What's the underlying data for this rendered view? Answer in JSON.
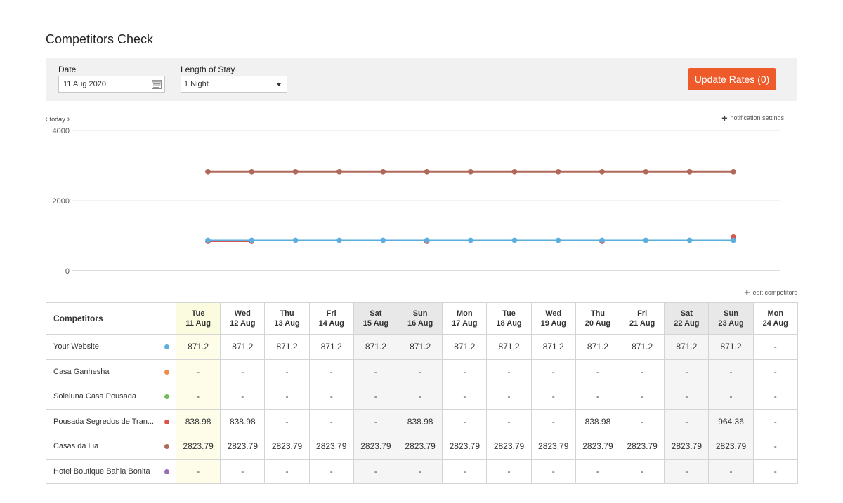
{
  "page": {
    "title": "Competitors Check"
  },
  "filters": {
    "date_label": "Date",
    "date_value": "11 Aug 2020",
    "los_label": "Length of Stay",
    "los_value": "1 Night",
    "update_button": "Update Rates (0)",
    "accent_color": "#ef5a2a"
  },
  "chart_nav": {
    "today_label": "today",
    "notification_label": "notification settings"
  },
  "chart_data": {
    "type": "line",
    "y_ticks": [
      "4000",
      "2000",
      "0"
    ],
    "ylim": [
      0,
      4000
    ],
    "x": [
      "11 Aug",
      "12 Aug",
      "13 Aug",
      "14 Aug",
      "15 Aug",
      "16 Aug",
      "17 Aug",
      "18 Aug",
      "19 Aug",
      "20 Aug",
      "21 Aug",
      "22 Aug",
      "23 Aug"
    ],
    "series": [
      {
        "name": "Casas da Lia",
        "color": "#b0685a",
        "values": [
          2823.79,
          2823.79,
          2823.79,
          2823.79,
          2823.79,
          2823.79,
          2823.79,
          2823.79,
          2823.79,
          2823.79,
          2823.79,
          2823.79,
          2823.79
        ]
      },
      {
        "name": "Pousada Segredos de Tran...",
        "color": "#d9534f",
        "values": [
          838.98,
          838.98,
          null,
          null,
          null,
          838.98,
          null,
          null,
          null,
          838.98,
          null,
          null,
          964.36
        ]
      },
      {
        "name": "Your Website",
        "color": "#5aaee0",
        "values": [
          871.2,
          871.2,
          871.2,
          871.2,
          871.2,
          871.2,
          871.2,
          871.2,
          871.2,
          871.2,
          871.2,
          871.2,
          871.2
        ]
      }
    ],
    "grid": true
  },
  "table": {
    "edit_label": "edit competitors",
    "header": "Competitors",
    "columns": [
      {
        "day": "Tue",
        "date": "11 Aug",
        "kind": "today"
      },
      {
        "day": "Wed",
        "date": "12 Aug",
        "kind": "plain"
      },
      {
        "day": "Thu",
        "date": "13 Aug",
        "kind": "plain"
      },
      {
        "day": "Fri",
        "date": "14 Aug",
        "kind": "plain"
      },
      {
        "day": "Sat",
        "date": "15 Aug",
        "kind": "weekend"
      },
      {
        "day": "Sun",
        "date": "16 Aug",
        "kind": "weekend"
      },
      {
        "day": "Mon",
        "date": "17 Aug",
        "kind": "plain"
      },
      {
        "day": "Tue",
        "date": "18 Aug",
        "kind": "plain"
      },
      {
        "day": "Wed",
        "date": "19 Aug",
        "kind": "plain"
      },
      {
        "day": "Thu",
        "date": "20 Aug",
        "kind": "plain"
      },
      {
        "day": "Fri",
        "date": "21 Aug",
        "kind": "plain"
      },
      {
        "day": "Sat",
        "date": "22 Aug",
        "kind": "weekend"
      },
      {
        "day": "Sun",
        "date": "23 Aug",
        "kind": "weekend"
      },
      {
        "day": "Mon",
        "date": "24 Aug",
        "kind": "plain"
      }
    ],
    "rows": [
      {
        "name": "Your Website",
        "color": "#5aaee0",
        "values": [
          "871.2",
          "871.2",
          "871.2",
          "871.2",
          "871.2",
          "871.2",
          "871.2",
          "871.2",
          "871.2",
          "871.2",
          "871.2",
          "871.2",
          "871.2",
          "-"
        ]
      },
      {
        "name": "Casa Ganhesha",
        "color": "#ef8c4a",
        "values": [
          "-",
          "-",
          "-",
          "-",
          "-",
          "-",
          "-",
          "-",
          "-",
          "-",
          "-",
          "-",
          "-",
          "-"
        ]
      },
      {
        "name": "Soleluna Casa Pousada",
        "color": "#6fbd58",
        "values": [
          "-",
          "-",
          "-",
          "-",
          "-",
          "-",
          "-",
          "-",
          "-",
          "-",
          "-",
          "-",
          "-",
          "-"
        ]
      },
      {
        "name": "Pousada Segredos de Tran...",
        "color": "#d9534f",
        "values": [
          "838.98",
          "838.98",
          "-",
          "-",
          "-",
          "838.98",
          "-",
          "-",
          "-",
          "838.98",
          "-",
          "-",
          "964.36",
          "-"
        ]
      },
      {
        "name": "Casas da Lia",
        "color": "#b0685a",
        "values": [
          "2823.79",
          "2823.79",
          "2823.79",
          "2823.79",
          "2823.79",
          "2823.79",
          "2823.79",
          "2823.79",
          "2823.79",
          "2823.79",
          "2823.79",
          "2823.79",
          "2823.79",
          "-"
        ]
      },
      {
        "name": "Hotel Boutique Bahia Bonita",
        "color": "#9b6bb5",
        "values": [
          "-",
          "-",
          "-",
          "-",
          "-",
          "-",
          "-",
          "-",
          "-",
          "-",
          "-",
          "-",
          "-",
          "-"
        ]
      }
    ]
  }
}
